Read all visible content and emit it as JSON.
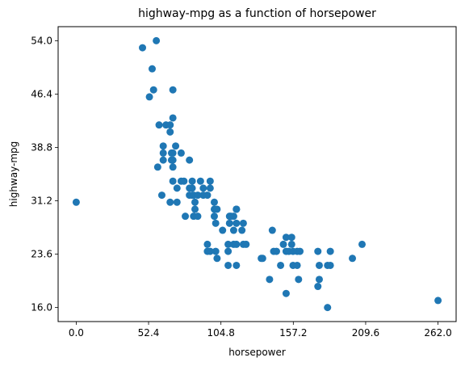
{
  "chart_data": {
    "type": "scatter",
    "title": "highway-mpg as a function of horsepower",
    "xlabel": "horsepower",
    "ylabel": "highway-mpg",
    "xlim": [
      -13.1,
      275.1
    ],
    "ylim": [
      14.0,
      56.0
    ],
    "xticks": [
      0.0,
      52.4,
      104.8,
      157.2,
      209.6,
      262.0
    ],
    "xtick_labels": [
      "0.0",
      "52.4",
      "104.8",
      "157.2",
      "209.6",
      "262.0"
    ],
    "yticks": [
      16.0,
      23.6,
      31.2,
      38.8,
      46.4,
      54.0
    ],
    "ytick_labels": [
      "16.0",
      "23.6",
      "31.2",
      "38.8",
      "46.4",
      "54.0"
    ],
    "grid": false,
    "marker_color": "#1f77b4",
    "points": [
      [
        0,
        31
      ],
      [
        48,
        53
      ],
      [
        53,
        46
      ],
      [
        55,
        50
      ],
      [
        56,
        47
      ],
      [
        58,
        54
      ],
      [
        59,
        36
      ],
      [
        60,
        42
      ],
      [
        62,
        32
      ],
      [
        63,
        38
      ],
      [
        63,
        39
      ],
      [
        63,
        37
      ],
      [
        65,
        42
      ],
      [
        68,
        42
      ],
      [
        68,
        41
      ],
      [
        68,
        31
      ],
      [
        69,
        37
      ],
      [
        69,
        38
      ],
      [
        70,
        43
      ],
      [
        70,
        47
      ],
      [
        70,
        38
      ],
      [
        70,
        37
      ],
      [
        70,
        36
      ],
      [
        70,
        34
      ],
      [
        72,
        39
      ],
      [
        73,
        33
      ],
      [
        73,
        31
      ],
      [
        76,
        38
      ],
      [
        76,
        34
      ],
      [
        78,
        34
      ],
      [
        79,
        29
      ],
      [
        82,
        37
      ],
      [
        82,
        33
      ],
      [
        82,
        32
      ],
      [
        84,
        32
      ],
      [
        84,
        34
      ],
      [
        84,
        33
      ],
      [
        85,
        29
      ],
      [
        85,
        32
      ],
      [
        86,
        31
      ],
      [
        86,
        30
      ],
      [
        88,
        32
      ],
      [
        88,
        29
      ],
      [
        90,
        34
      ],
      [
        92,
        33
      ],
      [
        92,
        32
      ],
      [
        95,
        32
      ],
      [
        95,
        25
      ],
      [
        95,
        24
      ],
      [
        97,
        33
      ],
      [
        97,
        34
      ],
      [
        97,
        24
      ],
      [
        100,
        31
      ],
      [
        100,
        30
      ],
      [
        100,
        29
      ],
      [
        101,
        28
      ],
      [
        101,
        24
      ],
      [
        102,
        23
      ],
      [
        102,
        30
      ],
      [
        106,
        27
      ],
      [
        110,
        25
      ],
      [
        110,
        24
      ],
      [
        110,
        22
      ],
      [
        111,
        29
      ],
      [
        111,
        28
      ],
      [
        112,
        29
      ],
      [
        114,
        29
      ],
      [
        114,
        27
      ],
      [
        114,
        25
      ],
      [
        116,
        30
      ],
      [
        116,
        28
      ],
      [
        116,
        30
      ],
      [
        116,
        30
      ],
      [
        116,
        25
      ],
      [
        116,
        22
      ],
      [
        120,
        27
      ],
      [
        121,
        28
      ],
      [
        121,
        25
      ],
      [
        123,
        25
      ],
      [
        134,
        23
      ],
      [
        135,
        23
      ],
      [
        140,
        20
      ],
      [
        142,
        27
      ],
      [
        143,
        24
      ],
      [
        145,
        24
      ],
      [
        148,
        22
      ],
      [
        150,
        25
      ],
      [
        152,
        26
      ],
      [
        152,
        24
      ],
      [
        152,
        18
      ],
      [
        154,
        24
      ],
      [
        156,
        26
      ],
      [
        156,
        25
      ],
      [
        157,
        24
      ],
      [
        157,
        22
      ],
      [
        160,
        24
      ],
      [
        160,
        22
      ],
      [
        161,
        20
      ],
      [
        162,
        24
      ],
      [
        175,
        24
      ],
      [
        175,
        19
      ],
      [
        176,
        22
      ],
      [
        176,
        20
      ],
      [
        182,
        22
      ],
      [
        182,
        16
      ],
      [
        184,
        22
      ],
      [
        184,
        24
      ],
      [
        200,
        23
      ],
      [
        207,
        25
      ],
      [
        262,
        17
      ]
    ]
  }
}
